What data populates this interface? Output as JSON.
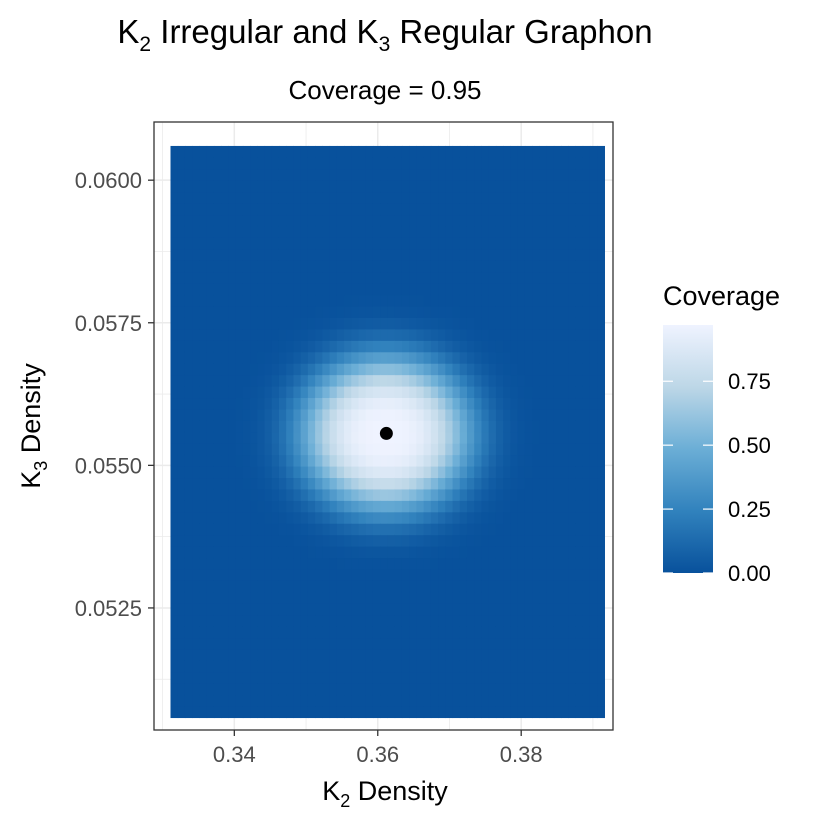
{
  "chart_data": {
    "type": "heatmap",
    "title": {
      "base": "K",
      "sub1": "2",
      "mid": " Irregular and K",
      "sub2": "3",
      "end": " Regular Graphon"
    },
    "subtitle": "Coverage = 0.95",
    "xlabel": {
      "base": "K",
      "sub": "2",
      "rest": " Density"
    },
    "ylabel": {
      "base": "K",
      "sub": "3",
      "rest": " Density"
    },
    "x_range": [
      0.3288,
      0.3928
    ],
    "y_range": [
      0.05036,
      0.06102
    ],
    "x_ticks": [
      {
        "value": 0.34,
        "label": "0.34"
      },
      {
        "value": 0.36,
        "label": "0.36"
      },
      {
        "value": 0.38,
        "label": "0.38"
      }
    ],
    "y_ticks": [
      {
        "value": 0.0525,
        "label": "0.0525"
      },
      {
        "value": 0.055,
        "label": "0.0550"
      },
      {
        "value": 0.0575,
        "label": "0.0575"
      },
      {
        "value": 0.06,
        "label": "0.0600"
      }
    ],
    "grid": true,
    "heatmap": {
      "x_extent": [
        0.3311,
        0.3916
      ],
      "y_extent": [
        0.05058,
        0.0606
      ],
      "nx": 60,
      "ny": 50,
      "peak_x": 0.3611,
      "peak_y": 0.05556,
      "peak_value": 0.97,
      "sigma_x": 0.0085,
      "sigma_y": 0.00098,
      "min_value": 0.0
    },
    "point": {
      "x": 0.3612,
      "y": 0.05556
    },
    "legend": {
      "title": "Coverage",
      "position": "right",
      "range": [
        0.0,
        0.97
      ],
      "ticks": [
        {
          "value": 0.0,
          "label": "0.00"
        },
        {
          "value": 0.25,
          "label": "0.25"
        },
        {
          "value": 0.5,
          "label": "0.50"
        },
        {
          "value": 0.75,
          "label": "0.75"
        }
      ],
      "low_color": "#08519c",
      "high_color": "#eff3ff",
      "gradient_stops": [
        "#08519c",
        "#3182bd",
        "#6baed6",
        "#bdd7e7",
        "#eff3ff"
      ]
    },
    "colors": {
      "panel_border": "#333333",
      "grid": "#ebebeb",
      "tick_text": "#4d4d4d",
      "point": "#000000"
    }
  }
}
